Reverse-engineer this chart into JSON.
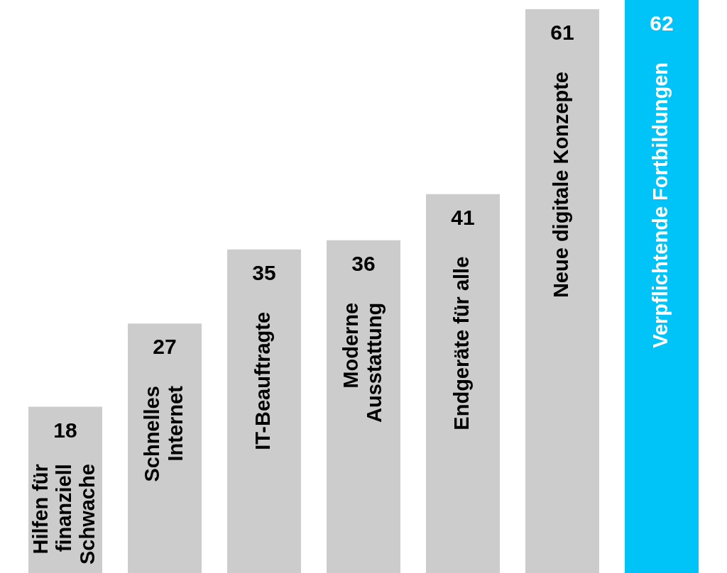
{
  "chart_data": {
    "type": "bar",
    "categories": [
      "Hilfen für\nfinanziell\nSchwache",
      "Schnelles\nInternet",
      "IT-Beauftragte",
      "Moderne\nAusstattung",
      "Endgeräte für alle",
      "Neue digitale Konzepte",
      "Verpflichtende Fortbildungen"
    ],
    "values": [
      18,
      27,
      35,
      36,
      41,
      61,
      62
    ],
    "colors": [
      "#cccccc",
      "#cccccc",
      "#cccccc",
      "#cccccc",
      "#cccccc",
      "#cccccc",
      "#00c3f7"
    ],
    "ylim": [
      0,
      62
    ],
    "data_labels": true,
    "tick_labels": "x"
  }
}
